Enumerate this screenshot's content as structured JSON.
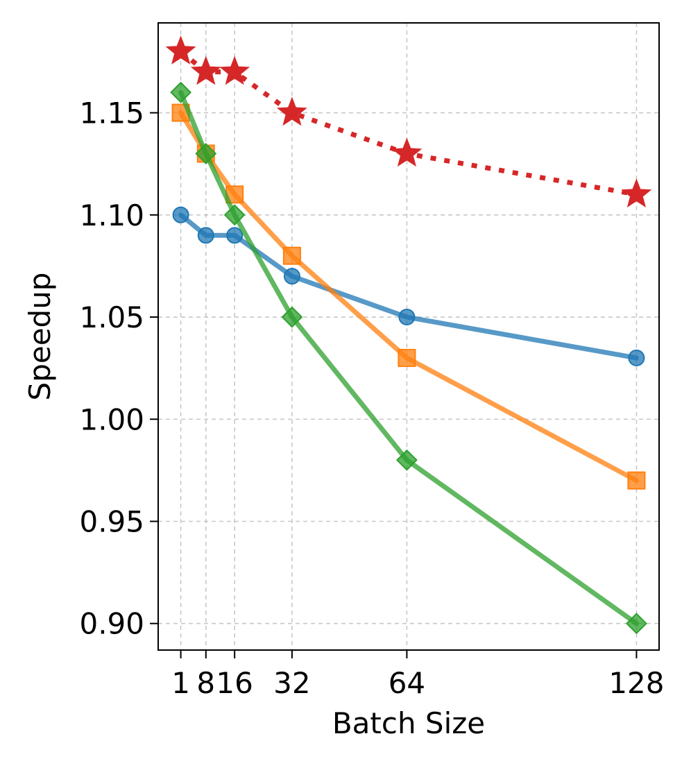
{
  "chart_data": {
    "type": "line",
    "title": "",
    "xlabel": "Batch Size",
    "ylabel": "Speedup",
    "x": [
      1,
      8,
      16,
      32,
      64,
      128
    ],
    "xtick_labels": [
      "1",
      "8",
      "16",
      "32",
      "64",
      "128"
    ],
    "yticks": [
      0.9,
      0.95,
      1.0,
      1.05,
      1.1,
      1.15
    ],
    "ytick_labels": [
      "0.90",
      "0.95",
      "1.00",
      "1.05",
      "1.10",
      "1.15"
    ],
    "xlim": [
      -5.3,
      134.3
    ],
    "ylim": [
      0.887,
      1.194
    ],
    "grid": true,
    "legend": false,
    "series": [
      {
        "name": "blue-circle",
        "color": "#1f77b4",
        "marker": "circle",
        "linestyle": "solid",
        "values": [
          1.1,
          1.09,
          1.09,
          1.07,
          1.05,
          1.03
        ]
      },
      {
        "name": "orange-square",
        "color": "#ff7f0e",
        "marker": "square",
        "linestyle": "solid",
        "values": [
          1.15,
          1.13,
          1.11,
          1.08,
          1.03,
          0.97
        ]
      },
      {
        "name": "green-diamond",
        "color": "#2ca02c",
        "marker": "diamond",
        "linestyle": "solid",
        "values": [
          1.16,
          1.13,
          1.1,
          1.05,
          0.98,
          0.9
        ]
      },
      {
        "name": "red-star",
        "color": "#d62728",
        "marker": "star",
        "linestyle": "dotted",
        "values": [
          1.18,
          1.17,
          1.17,
          1.15,
          1.13,
          1.11
        ]
      }
    ]
  }
}
